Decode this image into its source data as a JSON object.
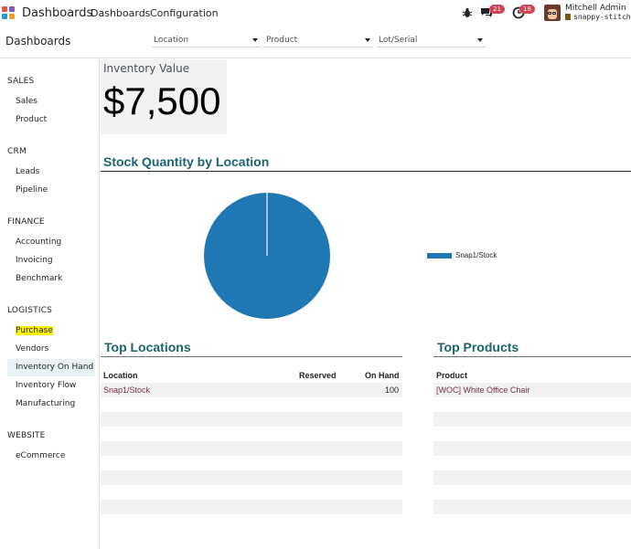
{
  "app": {
    "brand": "Dashboards",
    "menu": [
      "Dashboards",
      "Configuration"
    ]
  },
  "systray": {
    "messages_badge": "21",
    "activities_badge": "18",
    "user_name": "Mitchell Admin",
    "database": "snappy-stitch"
  },
  "control_panel": {
    "title": "Dashboards",
    "filters": [
      "Location",
      "Product",
      "Lot/Serial"
    ]
  },
  "sidebar": {
    "sections": [
      {
        "title": "SALES",
        "items": [
          "Sales",
          "Product"
        ]
      },
      {
        "title": "CRM",
        "items": [
          "Leads",
          "Pipeline"
        ]
      },
      {
        "title": "FINANCE",
        "items": [
          "Accounting",
          "Invoicing",
          "Benchmark"
        ]
      },
      {
        "title": "LOGISTICS",
        "items": [
          "Purchase",
          "Vendors",
          "Inventory On Hand",
          "Inventory Flow",
          "Manufacturing"
        ]
      },
      {
        "title": "WEBSITE",
        "items": [
          "eCommerce"
        ]
      }
    ],
    "active_item": "Inventory On Hand",
    "highlighted_item": "Purchase"
  },
  "kpi": {
    "label": "Inventory Value",
    "value": "$7,500"
  },
  "chart_data": {
    "type": "pie",
    "title": "Stock Quantity by Location",
    "categories": [
      "Snap1/Stock"
    ],
    "values": [
      100
    ],
    "colors": [
      "#1f77b4"
    ],
    "legend": "right"
  },
  "top_locations": {
    "title": "Top Locations",
    "columns": [
      "Location",
      "Reserved",
      "On Hand"
    ],
    "rows": [
      {
        "location": "Snap1/Stock",
        "reserved": "",
        "on_hand": "100"
      }
    ]
  },
  "top_products": {
    "title": "Top Products",
    "columns": [
      "Product"
    ],
    "rows": [
      {
        "product": "[WOC] White Office Chair"
      }
    ]
  },
  "colors": {
    "accent": "#1d6470",
    "link": "#7b2f46",
    "badge": "#d9434f",
    "pie": "#1f77b4",
    "highlight": "#fff200"
  }
}
